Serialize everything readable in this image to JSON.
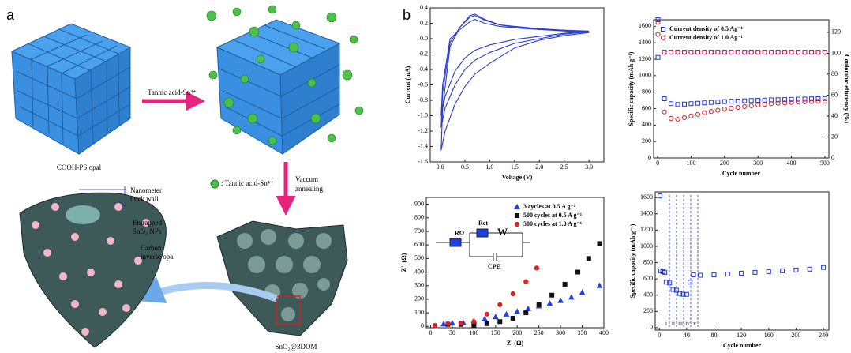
{
  "panel_labels": [
    "a",
    "b"
  ],
  "panel_a": {
    "arrow_label": "Tannic acid-Sn⁴⁺",
    "opal_label": "COOH-PS opal",
    "sphere_legend": ": Tannic acid-Sn⁴⁺",
    "annealing_label": [
      "Vaccum",
      "annealing"
    ],
    "wall_label": [
      "Nanometer",
      "thick wall"
    ],
    "np_label": [
      "Entrapped",
      "SnO₂ NPs"
    ],
    "carbon_label": [
      "Carbon",
      "inverse opal"
    ],
    "product_label": "SnO₂@3DOM"
  },
  "chart_data": [
    {
      "type": "line",
      "xlabel": "Voltage (V)",
      "ylabel": "Current (mA)",
      "xlim": [
        -0.2,
        3.3
      ],
      "ylim": [
        -1.6,
        0.4
      ],
      "xticks": [
        {
          "value": 0,
          "label": "0.0"
        },
        0.5,
        {
          "value": 1,
          "label": "1.0"
        },
        1.5,
        {
          "value": 2,
          "label": "2.0"
        },
        2.5,
        {
          "value": 3,
          "label": "3.0"
        }
      ],
      "yticks": [
        0.4,
        0.2,
        {
          "value": 0,
          "label": "0.0"
        },
        -0.2,
        -0.4,
        -0.6,
        -0.8,
        {
          "value": -1,
          "label": "-1.0"
        },
        -1.2,
        -1.4,
        -1.6
      ],
      "series": [
        {
          "color": "#2a3bd0",
          "x": [
            3.0,
            2.5,
            2.0,
            1.5,
            1.0,
            0.7,
            0.5,
            0.3,
            0.1,
            0.02,
            0.05,
            0.2,
            0.4,
            0.6,
            0.7,
            0.9,
            1.2,
            1.5,
            2.0,
            2.5,
            3.0
          ],
          "values": [
            0.08,
            0.04,
            -0.02,
            -0.12,
            -0.32,
            -0.46,
            -0.62,
            -0.85,
            -1.2,
            -1.45,
            -0.9,
            -0.1,
            0.15,
            0.3,
            0.32,
            0.25,
            0.18,
            0.15,
            0.12,
            0.1,
            0.08
          ]
        },
        {
          "color": "#2a3bd0",
          "x": [
            3.0,
            2.5,
            2.0,
            1.5,
            1.0,
            0.7,
            0.5,
            0.3,
            0.1,
            0.02,
            0.05,
            0.2,
            0.4,
            0.6,
            0.7,
            0.9,
            1.2,
            1.5,
            2.0,
            2.5,
            3.0
          ],
          "values": [
            0.09,
            0.06,
            0.0,
            -0.06,
            -0.18,
            -0.28,
            -0.4,
            -0.6,
            -0.9,
            -1.15,
            -0.7,
            -0.05,
            0.15,
            0.28,
            0.3,
            0.24,
            0.18,
            0.16,
            0.13,
            0.11,
            0.09
          ]
        },
        {
          "color": "#2a3bd0",
          "x": [
            3.0,
            2.5,
            2.0,
            1.5,
            1.0,
            0.7,
            0.5,
            0.3,
            0.1,
            0.02,
            0.05,
            0.2,
            0.4,
            0.6,
            0.7,
            0.9,
            1.2,
            1.5,
            2.0,
            2.5,
            3.0
          ],
          "values": [
            0.1,
            0.07,
            0.03,
            -0.01,
            -0.08,
            -0.15,
            -0.25,
            -0.42,
            -0.75,
            -1.0,
            -0.6,
            0.0,
            0.12,
            0.22,
            0.25,
            0.2,
            0.16,
            0.14,
            0.12,
            0.11,
            0.1
          ]
        }
      ]
    },
    {
      "type": "scatter",
      "xlabel": "Cycle number",
      "ylabel": "Specific capacity (mAh g⁻¹)",
      "y2label": "Coulombic efficiency (%)",
      "xlim": [
        -12,
        512
      ],
      "ylim": [
        0,
        1680
      ],
      "y2lim": [
        0,
        132
      ],
      "xticks": [
        0,
        100,
        200,
        300,
        400,
        500
      ],
      "yticks": [
        0,
        200,
        400,
        600,
        800,
        1000,
        1200,
        1400,
        1600
      ],
      "y2ticks": [
        0,
        20,
        40,
        60,
        80,
        100,
        120
      ],
      "legend": "upper left",
      "series": [
        {
          "name": "Current density of 0.5 Ag⁻¹",
          "color": "#2036d8",
          "marker": "square",
          "filled": false,
          "x": [
            1,
            20,
            40,
            60,
            80,
            100,
            120,
            140,
            160,
            180,
            200,
            220,
            240,
            260,
            280,
            300,
            320,
            340,
            360,
            380,
            400,
            420,
            440,
            460,
            480,
            500
          ],
          "values": [
            1680,
            720,
            660,
            650,
            655,
            660,
            665,
            670,
            675,
            680,
            685,
            690,
            692,
            695,
            698,
            700,
            703,
            706,
            708,
            710,
            712,
            714,
            716,
            718,
            720,
            722
          ]
        },
        {
          "name": "Current density of 1.0 Ag⁻¹",
          "color": "#e0202a",
          "marker": "circle",
          "filled": false,
          "x": [
            1,
            20,
            40,
            60,
            80,
            100,
            120,
            140,
            160,
            180,
            200,
            220,
            240,
            260,
            280,
            300,
            320,
            340,
            360,
            380,
            400,
            420,
            440,
            460,
            480,
            500
          ],
          "values": [
            1650,
            560,
            480,
            470,
            490,
            510,
            530,
            550,
            565,
            580,
            595,
            605,
            615,
            625,
            635,
            645,
            652,
            660,
            665,
            670,
            675,
            680,
            683,
            686,
            688,
            690
          ]
        },
        {
          "color": "#2036d8",
          "marker": "square",
          "filled": false,
          "axis": "y2",
          "x": [
            1,
            20,
            40,
            60,
            80,
            100,
            120,
            140,
            160,
            180,
            200,
            220,
            240,
            260,
            280,
            300,
            320,
            340,
            360,
            380,
            400,
            420,
            440,
            460,
            480,
            500
          ],
          "values": [
            96,
            101,
            101,
            101,
            101,
            101,
            101,
            101,
            101,
            101,
            101,
            101,
            101,
            101,
            101,
            101,
            101,
            101,
            101,
            101,
            101,
            101,
            101,
            101,
            101,
            101
          ]
        },
        {
          "color": "#e0202a",
          "marker": "circle",
          "filled": false,
          "axis": "y2",
          "x": [
            1,
            20,
            40,
            60,
            80,
            100,
            120,
            140,
            160,
            180,
            200,
            220,
            240,
            260,
            280,
            300,
            320,
            340,
            360,
            380,
            400,
            420,
            440,
            460,
            480,
            500
          ],
          "values": [
            118,
            101,
            101,
            101,
            101,
            101,
            101,
            101,
            101,
            101,
            101,
            101,
            101,
            101,
            101,
            101,
            101,
            101,
            101,
            101,
            101,
            101,
            101,
            101,
            101,
            101
          ]
        }
      ]
    },
    {
      "type": "scatter",
      "xlabel": "Z' (Ω)",
      "ylabel": "Z'' (Ω)",
      "xlim": [
        -10,
        400
      ],
      "ylim": [
        -10,
        950
      ],
      "xticks": [
        0,
        50,
        100,
        150,
        200,
        250,
        300,
        350,
        400
      ],
      "yticks": [
        0,
        100,
        200,
        300,
        400,
        500,
        600,
        700,
        800,
        900
      ],
      "legend": "upper right",
      "inset_labels": [
        "RΩ",
        "Rct",
        "W",
        "CPE"
      ],
      "series": [
        {
          "name": "3 cycles at 0.5 A g⁻¹",
          "color": "#2040e0",
          "marker": "triangle",
          "filled": true,
          "x": [
            10,
            30,
            50,
            75,
            100,
            125,
            150,
            175,
            200,
            225,
            250,
            275,
            300,
            325,
            350,
            390
          ],
          "values": [
            5,
            18,
            25,
            30,
            40,
            55,
            70,
            90,
            110,
            130,
            150,
            170,
            190,
            215,
            250,
            300
          ]
        },
        {
          "name": "500 cycles at 0.5 A g⁻¹",
          "color": "#111111",
          "marker": "square",
          "filled": true,
          "x": [
            10,
            40,
            70,
            100,
            130,
            160,
            190,
            220,
            250,
            280,
            310,
            340,
            365,
            390
          ],
          "values": [
            5,
            15,
            15,
            10,
            20,
            35,
            60,
            100,
            160,
            230,
            310,
            400,
            500,
            610
          ]
        },
        {
          "name": "500 cycles at 1.0 A g⁻¹",
          "color": "#e02020",
          "marker": "circle",
          "filled": true,
          "x": [
            10,
            40,
            70,
            100,
            130,
            160,
            190,
            220,
            245
          ],
          "values": [
            5,
            20,
            25,
            35,
            90,
            160,
            240,
            330,
            430
          ]
        }
      ]
    },
    {
      "type": "scatter",
      "xlabel": "Cycle number",
      "ylabel": "Specific capacity (mAh g⁻¹)",
      "xlim": [
        -6,
        248
      ],
      "ylim": [
        -30,
        1670
      ],
      "xticks": [
        0,
        40,
        80,
        120,
        160,
        200,
        240
      ],
      "yticks": [
        0,
        200,
        400,
        600,
        800,
        1000,
        1200,
        1400,
        1600
      ],
      "annotations": [
        "i",
        "ii",
        "iii",
        "iv",
        "v"
      ],
      "series": [
        {
          "color": "#2036d8",
          "marker": "square",
          "filled": false,
          "x": [
            1,
            2,
            5,
            8,
            10,
            15,
            20,
            25,
            30,
            35,
            40,
            45,
            50,
            60,
            80,
            100,
            120,
            140,
            160,
            180,
            200,
            220,
            240
          ],
          "values": [
            1620,
            700,
            690,
            680,
            560,
            550,
            470,
            460,
            420,
            410,
            410,
            560,
            650,
            645,
            650,
            660,
            670,
            680,
            690,
            700,
            710,
            720,
            740
          ]
        }
      ]
    }
  ]
}
